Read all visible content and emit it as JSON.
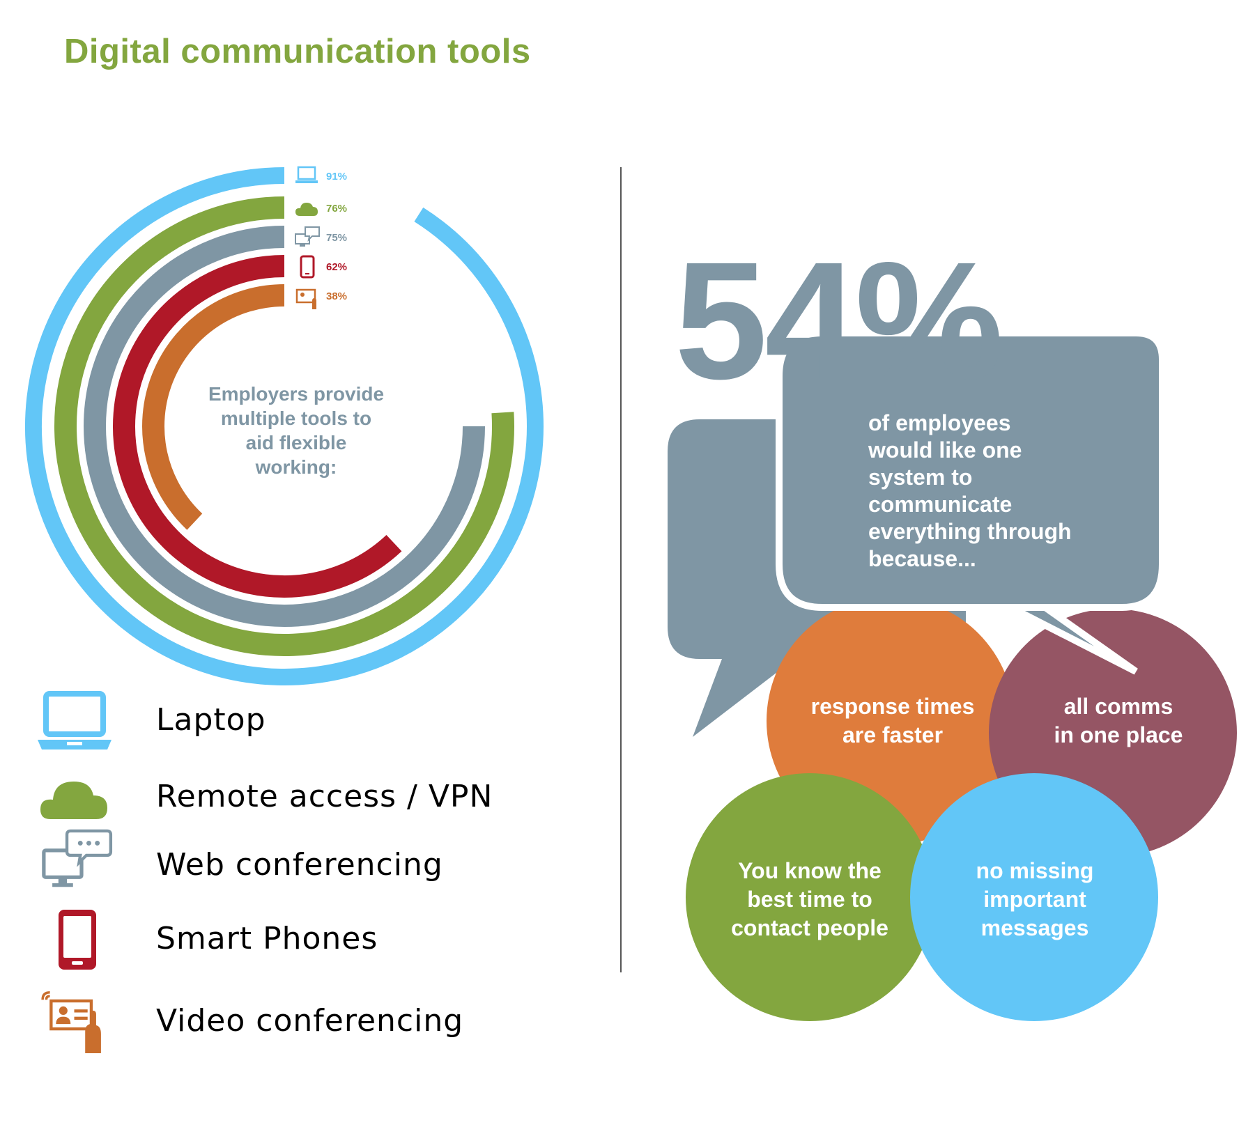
{
  "title": "Digital communication tools",
  "chart_data": {
    "type": "radial-bar",
    "title": "Employers provide multiple tools to aid flexible working:",
    "unit": "%",
    "categories": [
      "Laptop",
      "Remote access / VPN",
      "Web conferencing",
      "Smart Phones",
      "Video conferencing"
    ],
    "values": [
      91,
      76,
      75,
      62,
      38
    ],
    "labels": [
      "91%",
      "76%",
      "75%",
      "62%",
      "38%"
    ],
    "colors": [
      "#62c6f7",
      "#83a63f",
      "#7f96a4",
      "#b01828",
      "#c96e2d"
    ],
    "icons": [
      "laptop-icon",
      "cloud-icon",
      "web-conference-icon",
      "smartphone-icon",
      "video-conference-icon"
    ],
    "range": [
      0,
      100
    ]
  },
  "center_text": "Employers provide\nmultiple tools to\naid flexible\nworking:",
  "legend": [
    {
      "label": "Laptop",
      "icon": "laptop-icon",
      "color": "#62c6f7"
    },
    {
      "label": "Remote access / VPN",
      "icon": "cloud-icon",
      "color": "#83a63f"
    },
    {
      "label": "Web conferencing",
      "icon": "web-conference-icon",
      "color": "#7f96a4"
    },
    {
      "label": "Smart Phones",
      "icon": "smartphone-icon",
      "color": "#b01828"
    },
    {
      "label": "Video conferencing",
      "icon": "video-conference-icon",
      "color": "#c96e2d"
    }
  ],
  "stat": {
    "value": "54%",
    "text": "of employees\nwould like one\nsystem to\ncommunicate\neverything through\nbecause..."
  },
  "reasons": [
    {
      "text": "response times\nare faster",
      "color": "#df7c3c"
    },
    {
      "text": "all comms\nin one place",
      "color": "#955564"
    },
    {
      "text": "You know the\nbest time to\ncontact people",
      "color": "#83a63f"
    },
    {
      "text": "no missing\nimportant\nmessages",
      "color": "#62c6f7"
    }
  ],
  "bubble_color": "#7f96a4"
}
